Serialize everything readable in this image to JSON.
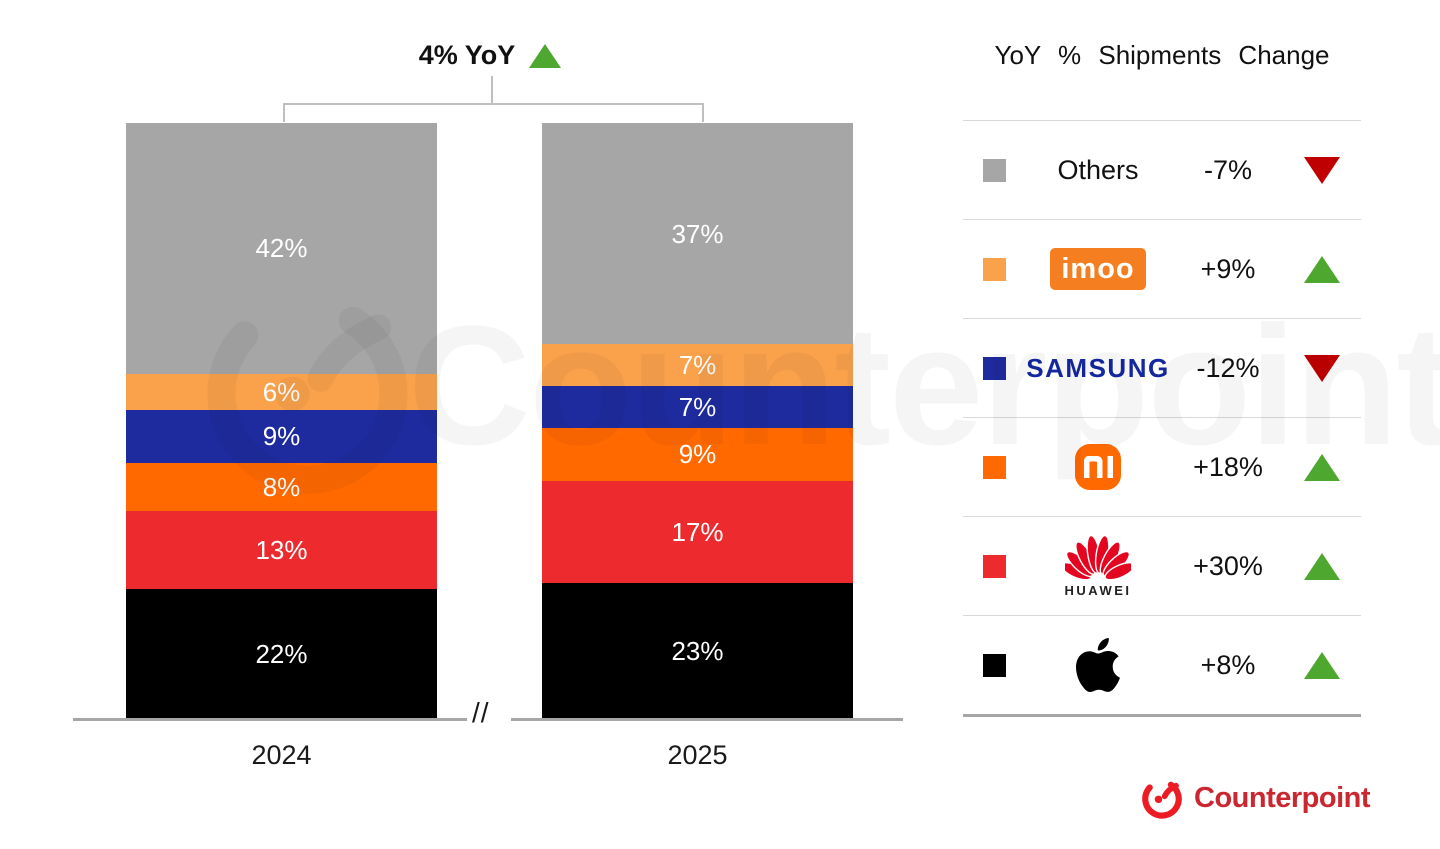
{
  "title": {
    "label": "4% YoY",
    "direction": "up"
  },
  "chart_data": {
    "type": "bar",
    "stacked": true,
    "unit": "%",
    "categories": [
      "2024",
      "2025"
    ],
    "series": [
      {
        "name": "Apple",
        "color": "#000000",
        "values": [
          22,
          23
        ]
      },
      {
        "name": "Huawei",
        "color": "#ED2B2F",
        "values": [
          13,
          17
        ]
      },
      {
        "name": "Xiaomi",
        "color": "#FF6900",
        "values": [
          8,
          9
        ]
      },
      {
        "name": "Samsung",
        "color": "#1E2B9E",
        "values": [
          9,
          7
        ]
      },
      {
        "name": "imoo",
        "color": "#F9A14B",
        "values": [
          6,
          7
        ]
      },
      {
        "name": "Others",
        "color": "#A6A6A6",
        "values": [
          42,
          37
        ]
      }
    ],
    "annotation": "4% YoY",
    "axis_break": "//",
    "legend_position": "right",
    "grid": false
  },
  "legend": {
    "header": "YoY % Shipments Change",
    "rows": [
      {
        "brand": "Others",
        "logo_text": "Others",
        "change": "-7%",
        "direction": "down",
        "color": "#A6A6A6"
      },
      {
        "brand": "imoo",
        "logo_text": "imoo",
        "change": "+9%",
        "direction": "up",
        "color": "#F9A14B"
      },
      {
        "brand": "Samsung",
        "logo_text": "SAMSUNG",
        "change": "-12%",
        "direction": "down",
        "color": "#1E2B9E"
      },
      {
        "brand": "Xiaomi",
        "logo_text": "mi",
        "change": "+18%",
        "direction": "up",
        "color": "#FF6900"
      },
      {
        "brand": "Huawei",
        "logo_text": "HUAWEI",
        "change": "+30%",
        "direction": "up",
        "color": "#ED2B2F"
      },
      {
        "brand": "Apple",
        "logo_text": "",
        "change": "+8%",
        "direction": "up",
        "color": "#000000"
      }
    ]
  },
  "colors": {
    "up_triangle": "#4EA72E",
    "down_triangle": "#C00000",
    "axis": "#A6A6A6",
    "samsung_blue": "#1428A0",
    "imoo_orange": "#F57E20",
    "xiaomi_orange": "#FF6900",
    "huawei_red": "#E40521",
    "counterpoint_red": "#CB2730"
  },
  "branding": {
    "watermark": "Counterpoint",
    "logo_text": "Counterpoint"
  }
}
